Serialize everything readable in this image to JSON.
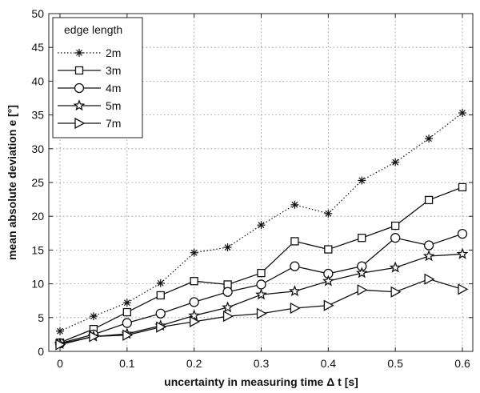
{
  "chart_data": {
    "type": "line",
    "xlabel": "uncertainty in measuring time Δ t [s]",
    "ylabel": "mean absolute deviation e [°]",
    "xlim": [
      0,
      0.6
    ],
    "ylim": [
      0,
      50
    ],
    "xticks": [
      0,
      0.1,
      0.2,
      0.3,
      0.4,
      0.5,
      0.6
    ],
    "xtick_labels": [
      "0",
      "0.1",
      "0.2",
      "0.3",
      "0.4",
      "0.5",
      "0.6"
    ],
    "yticks": [
      0,
      5,
      10,
      15,
      20,
      25,
      30,
      35,
      40,
      45,
      50
    ],
    "ytick_labels": [
      "0",
      "5",
      "10",
      "15",
      "20",
      "25",
      "30",
      "35",
      "40",
      "45",
      "50"
    ],
    "grid": true,
    "legend_title": "edge length",
    "legend_position": "top-left",
    "x": [
      0,
      0.05,
      0.1,
      0.15,
      0.2,
      0.25,
      0.3,
      0.35,
      0.4,
      0.45,
      0.5,
      0.55,
      0.6
    ],
    "series": [
      {
        "name": "2m",
        "marker": "asterisk",
        "line_style": "dotted",
        "values": [
          3.0,
          5.2,
          7.2,
          10.1,
          14.6,
          15.4,
          18.7,
          21.7,
          20.4,
          25.3,
          28.0,
          31.5,
          35.3
        ]
      },
      {
        "name": "3m",
        "marker": "square",
        "line_style": "solid",
        "values": [
          1.3,
          3.3,
          5.8,
          8.3,
          10.4,
          9.9,
          11.6,
          16.3,
          15.1,
          16.8,
          18.6,
          22.4,
          24.3
        ]
      },
      {
        "name": "4m",
        "marker": "circle",
        "line_style": "solid",
        "values": [
          1.2,
          2.5,
          4.2,
          5.6,
          7.3,
          8.8,
          9.9,
          12.6,
          11.5,
          12.6,
          16.8,
          15.7,
          17.4
        ]
      },
      {
        "name": "5m",
        "marker": "star",
        "line_style": "solid",
        "values": [
          1.1,
          2.2,
          2.6,
          3.8,
          5.3,
          6.5,
          8.4,
          8.9,
          10.4,
          11.6,
          12.4,
          14.1,
          14.4
        ]
      },
      {
        "name": "7m",
        "marker": "triangle-right",
        "line_style": "solid",
        "values": [
          1.0,
          2.2,
          2.4,
          3.6,
          4.4,
          5.2,
          5.6,
          6.4,
          6.8,
          9.1,
          8.8,
          10.7,
          9.2
        ]
      }
    ]
  }
}
